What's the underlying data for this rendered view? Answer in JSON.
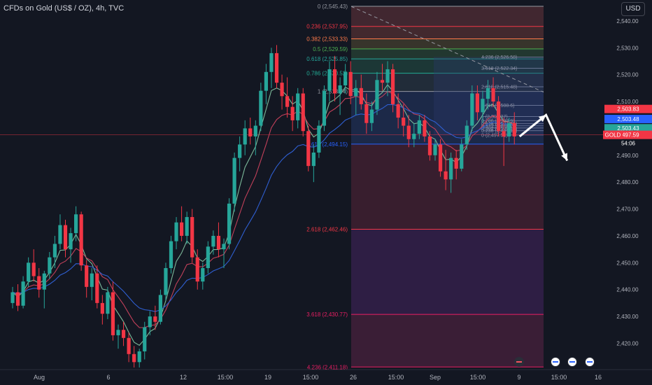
{
  "header": {
    "title": "CFDs on Gold (US$ / OZ), 4h, TVC",
    "currency_button": "USD"
  },
  "colors": {
    "background": "#131722",
    "up_candle": "#26a69a",
    "down_candle": "#f23645",
    "ema_fast": "#7cb99a",
    "ema_mid": "#c2405a",
    "ema_slow": "#2f5fd1",
    "projection_arrow": "#ffffff"
  },
  "chart_data": {
    "type": "candlestick",
    "title": "CFDs on Gold (US$ / OZ), 4h, TVC",
    "ylim": [
      2411,
      2547
    ],
    "y_ticks": [
      2420,
      2430,
      2440,
      2450,
      2460,
      2470,
      2480,
      2490,
      2500,
      2510,
      2520,
      2530,
      2540
    ],
    "y_tick_labels": [
      "2,420.00",
      "2,430.00",
      "2,440.00",
      "2,450.00",
      "2,460.00",
      "2,470.00",
      "2,480.00",
      "2,490.00",
      "2,500.00",
      "2,510.00",
      "2,520.00",
      "2,530.00",
      "2,540.00"
    ],
    "x_labels": [
      "Aug",
      "6",
      "12",
      "15:00",
      "19",
      "15:00",
      "26",
      "15:00",
      "Sep",
      "15:00",
      "9",
      "15:00",
      "16"
    ],
    "fib_main": {
      "levels": [
        {
          "label": "0 (2,545.43)",
          "price": 2545.43,
          "color": "#9598a1"
        },
        {
          "label": "0.236 (2,537.95)",
          "price": 2537.95,
          "color": "#f23645"
        },
        {
          "label": "0.382 (2,533.33)",
          "price": 2533.33,
          "color": "#ff7a4a"
        },
        {
          "label": "0.5 (2,529.59)",
          "price": 2529.59,
          "color": "#4caf50"
        },
        {
          "label": "0.618 (2,525.85)",
          "price": 2525.85,
          "color": "#26a69a"
        },
        {
          "label": "0.786 (2,520.52)",
          "price": 2520.52,
          "color": "#22ab94"
        },
        {
          "label": "1 (2,513.74)",
          "price": 2513.74,
          "color": "#9598a1"
        },
        {
          "label": "1.618 (2,494.15)",
          "price": 2494.15,
          "color": "#2962ff"
        },
        {
          "label": "2.618 (2,462.46)",
          "price": 2462.46,
          "color": "#f23645"
        },
        {
          "label": "3.618 (2,430.77)",
          "price": 2430.77,
          "color": "#e91e63"
        },
        {
          "label": "4.236 (2,411.18)",
          "price": 2411.18,
          "color": "#e91e63"
        }
      ]
    },
    "fib_small": {
      "levels": [
        {
          "label": "4.236 (2,526.58)",
          "price": 2526.58
        },
        {
          "label": "3.618 (2,522.34)",
          "price": 2522.34
        },
        {
          "label": "2.618 (2,515.48)",
          "price": 2515.48
        },
        {
          "label": "1.618 (2,508.6)",
          "price": 2508.6
        },
        {
          "label": "1 (2,504.37)",
          "price": 2504.37
        },
        {
          "label": "0.786 (2,502.9)",
          "price": 2502.9
        },
        {
          "label": "0.618 (2,501.75)",
          "price": 2501.75
        },
        {
          "label": "0.5 (2,500.94)",
          "price": 2500.94
        },
        {
          "label": "0.382 (2,500.13)",
          "price": 2500.13
        },
        {
          "label": "0.236 (2,499.13)",
          "price": 2499.13
        },
        {
          "label": "0 (2,497.51)",
          "price": 2497.51
        }
      ]
    },
    "price_tags": [
      {
        "label": "2,503.83",
        "price": 2503.83,
        "color": "#f23645"
      },
      {
        "label": "2,503.48",
        "price": 2503.48,
        "color": "#2962ff"
      },
      {
        "label": "2,503.43",
        "price": 2503.43,
        "color": "#26a69a"
      },
      {
        "label": "2,497.59",
        "price": 2497.59,
        "color": "#f23645"
      }
    ],
    "current": {
      "symbol": "GOLD",
      "price": 2497.59,
      "countdown": "54:06"
    },
    "projection": [
      {
        "bar": 96,
        "price": 2497
      },
      {
        "bar": 101,
        "price": 2505
      },
      {
        "bar": 105,
        "price": 2488
      }
    ],
    "candles": [
      [
        2435,
        2441,
        2433,
        2439
      ],
      [
        2439,
        2442,
        2432,
        2434
      ],
      [
        2434,
        2445,
        2433,
        2443
      ],
      [
        2443,
        2452,
        2441,
        2450
      ],
      [
        2450,
        2455,
        2443,
        2445
      ],
      [
        2445,
        2448,
        2437,
        2440
      ],
      [
        2440,
        2447,
        2433,
        2446
      ],
      [
        2446,
        2454,
        2444,
        2452
      ],
      [
        2452,
        2460,
        2448,
        2457
      ],
      [
        2457,
        2468,
        2455,
        2464
      ],
      [
        2464,
        2466,
        2452,
        2455
      ],
      [
        2455,
        2463,
        2450,
        2461
      ],
      [
        2461,
        2471,
        2458,
        2468
      ],
      [
        2468,
        2469,
        2447,
        2449
      ],
      [
        2449,
        2451,
        2437,
        2441
      ],
      [
        2441,
        2448,
        2436,
        2446
      ],
      [
        2446,
        2449,
        2433,
        2435
      ],
      [
        2435,
        2438,
        2427,
        2431
      ],
      [
        2431,
        2441,
        2429,
        2439
      ],
      [
        2439,
        2443,
        2421,
        2423
      ],
      [
        2423,
        2427,
        2418,
        2425
      ],
      [
        2425,
        2428,
        2419,
        2422
      ],
      [
        2422,
        2424,
        2413,
        2416
      ],
      [
        2416,
        2419,
        2411,
        2413
      ],
      [
        2413,
        2418,
        2411,
        2417
      ],
      [
        2417,
        2428,
        2414,
        2426
      ],
      [
        2426,
        2432,
        2423,
        2430
      ],
      [
        2430,
        2434,
        2425,
        2428
      ],
      [
        2428,
        2440,
        2427,
        2438
      ],
      [
        2438,
        2450,
        2436,
        2448
      ],
      [
        2448,
        2460,
        2446,
        2458
      ],
      [
        2458,
        2467,
        2455,
        2465
      ],
      [
        2465,
        2471,
        2458,
        2460
      ],
      [
        2460,
        2469,
        2457,
        2467
      ],
      [
        2467,
        2470,
        2450,
        2452
      ],
      [
        2452,
        2455,
        2440,
        2443
      ],
      [
        2443,
        2450,
        2440,
        2448
      ],
      [
        2448,
        2458,
        2446,
        2456
      ],
      [
        2456,
        2462,
        2453,
        2460
      ],
      [
        2460,
        2465,
        2452,
        2455
      ],
      [
        2455,
        2459,
        2448,
        2457
      ],
      [
        2457,
        2474,
        2455,
        2472
      ],
      [
        2472,
        2491,
        2469,
        2489
      ],
      [
        2489,
        2497,
        2484,
        2494
      ],
      [
        2494,
        2503,
        2490,
        2500
      ],
      [
        2500,
        2504,
        2494,
        2497
      ],
      [
        2497,
        2503,
        2490,
        2501
      ],
      [
        2501,
        2517,
        2499,
        2514
      ],
      [
        2514,
        2524,
        2509,
        2521
      ],
      [
        2521,
        2530,
        2515,
        2528
      ],
      [
        2528,
        2531,
        2515,
        2517
      ],
      [
        2517,
        2520,
        2507,
        2512
      ],
      [
        2512,
        2519,
        2504,
        2508
      ],
      [
        2508,
        2512,
        2499,
        2503
      ],
      [
        2503,
        2515,
        2500,
        2513
      ],
      [
        2513,
        2515,
        2497,
        2499
      ],
      [
        2499,
        2501,
        2484,
        2486
      ],
      [
        2486,
        2494,
        2480,
        2491
      ],
      [
        2491,
        2503,
        2489,
        2501
      ],
      [
        2501,
        2516,
        2499,
        2514
      ],
      [
        2514,
        2525,
        2510,
        2522
      ],
      [
        2522,
        2527,
        2510,
        2513
      ],
      [
        2513,
        2519,
        2505,
        2516
      ],
      [
        2516,
        2524,
        2513,
        2521
      ],
      [
        2521,
        2525,
        2509,
        2512
      ],
      [
        2512,
        2518,
        2505,
        2515
      ],
      [
        2515,
        2520,
        2507,
        2509
      ],
      [
        2509,
        2513,
        2498,
        2502
      ],
      [
        2502,
        2510,
        2499,
        2507
      ],
      [
        2507,
        2521,
        2505,
        2518
      ],
      [
        2518,
        2524,
        2514,
        2517
      ],
      [
        2517,
        2525,
        2512,
        2522
      ],
      [
        2522,
        2524,
        2506,
        2509
      ],
      [
        2509,
        2513,
        2500,
        2504
      ],
      [
        2504,
        2509,
        2497,
        2501
      ],
      [
        2501,
        2505,
        2493,
        2496
      ],
      [
        2496,
        2502,
        2493,
        2498
      ],
      [
        2498,
        2505,
        2496,
        2503
      ],
      [
        2503,
        2505,
        2495,
        2497
      ],
      [
        2497,
        2499,
        2488,
        2490
      ],
      [
        2490,
        2496,
        2488,
        2494
      ],
      [
        2494,
        2496,
        2482,
        2484
      ],
      [
        2484,
        2492,
        2477,
        2481
      ],
      [
        2481,
        2491,
        2476,
        2489
      ],
      [
        2489,
        2492,
        2481,
        2485
      ],
      [
        2485,
        2496,
        2484,
        2494
      ],
      [
        2494,
        2503,
        2492,
        2501
      ],
      [
        2501,
        2516,
        2499,
        2513
      ],
      [
        2513,
        2516,
        2503,
        2506
      ],
      [
        2506,
        2514,
        2502,
        2511
      ],
      [
        2511,
        2518,
        2507,
        2515
      ],
      [
        2515,
        2519,
        2508,
        2510
      ],
      [
        2510,
        2512,
        2497,
        2499
      ],
      [
        2499,
        2504,
        2486,
        2497
      ],
      [
        2497,
        2504,
        2495,
        2502
      ],
      [
        2502,
        2506,
        2494,
        2497
      ]
    ]
  }
}
